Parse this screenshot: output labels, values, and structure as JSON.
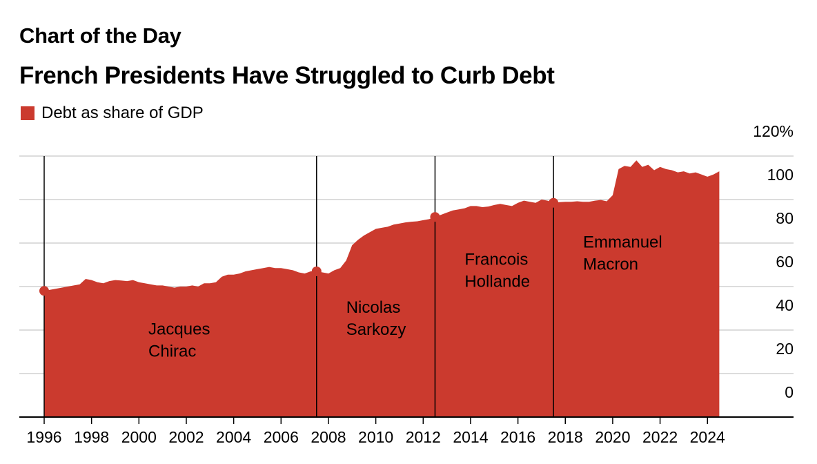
{
  "header": {
    "kicker": "Chart of the Day",
    "title": "French Presidents Have Struggled to Curb Debt"
  },
  "legend": {
    "label": "Debt as share of GDP",
    "color": "#CB3A2E"
  },
  "colors": {
    "area": "#CB3A2E",
    "grid": "#DCDCDC",
    "axis": "#000000",
    "divider": "#000000"
  },
  "chart_data": {
    "type": "area",
    "series": [
      {
        "name": "Debt as share of GDP",
        "x": [
          1996.0,
          1996.5,
          1997.0,
          1997.25,
          1997.5,
          1997.75,
          1998.0,
          1998.25,
          1998.5,
          1998.75,
          1999.0,
          1999.25,
          1999.5,
          1999.75,
          2000.0,
          2000.25,
          2000.5,
          2000.75,
          2001.0,
          2001.25,
          2001.5,
          2001.75,
          2002.0,
          2002.25,
          2002.5,
          2002.75,
          2003.0,
          2003.25,
          2003.5,
          2003.75,
          2004.0,
          2004.25,
          2004.5,
          2004.75,
          2005.0,
          2005.25,
          2005.5,
          2005.75,
          2006.0,
          2006.25,
          2006.5,
          2006.75,
          2007.0,
          2007.25,
          2007.5,
          2007.75,
          2008.0,
          2008.25,
          2008.5,
          2008.75,
          2009.0,
          2009.25,
          2009.5,
          2009.75,
          2010.0,
          2010.25,
          2010.5,
          2010.75,
          2011.0,
          2011.25,
          2011.5,
          2011.75,
          2012.0,
          2012.25,
          2012.5,
          2012.75,
          2013.0,
          2013.25,
          2013.5,
          2013.75,
          2014.0,
          2014.25,
          2014.5,
          2014.75,
          2015.0,
          2015.25,
          2015.5,
          2015.75,
          2016.0,
          2016.25,
          2016.5,
          2016.75,
          2017.0,
          2017.25,
          2017.5,
          2017.75,
          2018.0,
          2018.25,
          2018.5,
          2018.75,
          2019.0,
          2019.25,
          2019.5,
          2019.75,
          2020.0,
          2020.25,
          2020.5,
          2020.75,
          2021.0,
          2021.25,
          2021.5,
          2021.75,
          2022.0,
          2022.25,
          2022.5,
          2022.75,
          2023.0,
          2023.25,
          2023.5,
          2023.75,
          2024.0,
          2024.25,
          2024.5
        ],
        "values": [
          58.0,
          59.0,
          60.0,
          60.5,
          61.0,
          63.5,
          63.0,
          62.0,
          61.5,
          62.5,
          63.0,
          62.8,
          62.5,
          63.0,
          62.0,
          61.5,
          61.0,
          60.5,
          60.5,
          60.0,
          59.5,
          60.0,
          60.0,
          60.5,
          60.0,
          61.5,
          61.5,
          62.0,
          64.5,
          65.5,
          65.5,
          66.0,
          67.0,
          67.5,
          68.0,
          68.5,
          69.0,
          68.5,
          68.5,
          68.0,
          67.5,
          66.5,
          66.0,
          67.0,
          67.0,
          66.5,
          66.0,
          67.5,
          68.5,
          72.0,
          79.0,
          81.5,
          83.5,
          85.0,
          86.5,
          87.0,
          87.5,
          88.5,
          89.0,
          89.5,
          89.8,
          90.0,
          90.5,
          91.0,
          92.0,
          93.0,
          94.0,
          95.0,
          95.5,
          96.0,
          97.0,
          97.0,
          96.5,
          96.8,
          97.5,
          98.0,
          97.5,
          97.0,
          98.5,
          99.5,
          99.0,
          98.5,
          100.0,
          99.5,
          98.5,
          98.8,
          99.0,
          99.0,
          99.2,
          99.0,
          99.0,
          99.5,
          99.8,
          99.2,
          102.0,
          114.0,
          115.5,
          115.0,
          118.0,
          115.0,
          116.0,
          113.5,
          115.0,
          114.0,
          113.5,
          112.5,
          113.0,
          112.0,
          112.5,
          111.5,
          110.5,
          111.5,
          113.0
        ]
      }
    ],
    "presidents": [
      {
        "name": "Jacques Chirac",
        "start": 1996.0,
        "label_lines": [
          "Jacques",
          "Chirac"
        ],
        "label_x": 2000.4,
        "label_y": 38
      },
      {
        "name": "Nicolas Sarkozy",
        "start": 2007.5,
        "label_lines": [
          "Nicolas",
          "Sarkozy"
        ],
        "label_x": 2008.75,
        "label_y": 48
      },
      {
        "name": "Francois Hollande",
        "start": 2012.5,
        "label_lines": [
          "Francois",
          "Hollande"
        ],
        "label_x": 2013.75,
        "label_y": 70
      },
      {
        "name": "Emmanuel Macron",
        "start": 2017.5,
        "label_lines": [
          "Emmanuel",
          "Macron"
        ],
        "label_x": 2018.75,
        "label_y": 78
      }
    ],
    "x_ticks": [
      1996,
      1998,
      2000,
      2002,
      2004,
      2006,
      2008,
      2010,
      2012,
      2014,
      2016,
      2018,
      2020,
      2022,
      2024
    ],
    "y_ticks": [
      0,
      20,
      40,
      60,
      80,
      100,
      120
    ],
    "y_tick_labels": [
      "0",
      "20",
      "40",
      "60",
      "80",
      "100",
      "120%"
    ],
    "xlim": [
      1995,
      2026.5
    ],
    "ylim": [
      0,
      120
    ],
    "grid": true,
    "ylabel": "",
    "xlabel": ""
  }
}
